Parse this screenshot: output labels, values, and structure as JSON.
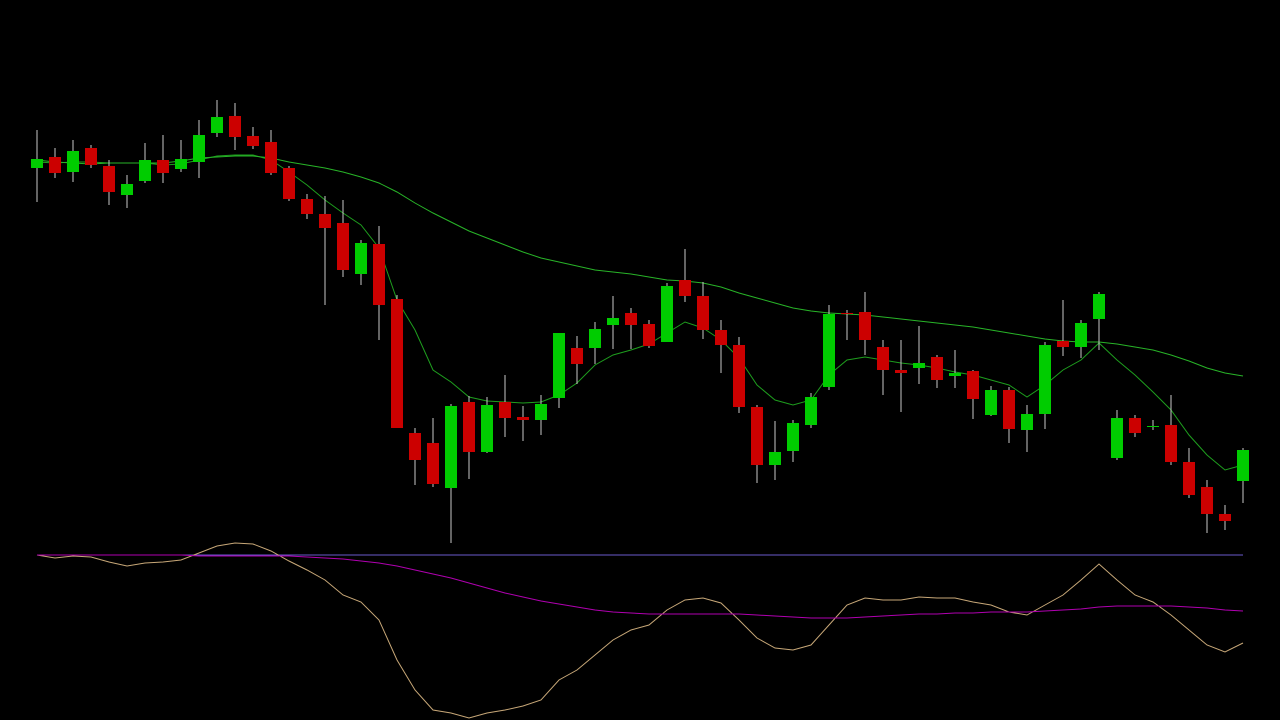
{
  "chart_data": [
    {
      "type": "candlestick",
      "up_color": "#00cc00",
      "down_color": "#cc0000",
      "wick_color": "#c8c8c8",
      "ylim": [
        55,
        520
      ],
      "open": [
        432,
        443,
        428,
        452,
        434,
        405,
        419,
        440,
        431,
        438,
        467,
        484,
        464,
        458,
        432,
        401,
        386,
        377,
        326,
        356,
        301,
        167,
        157,
        112,
        198,
        148,
        198,
        183,
        180,
        202,
        252,
        252,
        275,
        287,
        276,
        258,
        320,
        304,
        270,
        255,
        193,
        135,
        149,
        175,
        213,
        287,
        288,
        253,
        230,
        232,
        243,
        224,
        229,
        185,
        210,
        170,
        186,
        259,
        253,
        281,
        142,
        182,
        173,
        175,
        138,
        113,
        86,
        119
      ],
      "high": [
        470,
        452,
        460,
        455,
        440,
        425,
        457,
        465,
        460,
        480,
        500,
        497,
        473,
        470,
        434,
        406,
        404,
        400,
        360,
        374,
        305,
        172,
        182,
        196,
        204,
        203,
        225,
        194,
        205,
        267,
        264,
        278,
        304,
        292,
        280,
        317,
        351,
        318,
        280,
        263,
        195,
        179,
        180,
        207,
        295,
        290,
        308,
        260,
        260,
        274,
        245,
        250,
        230,
        214,
        213,
        195,
        258,
        300,
        280,
        308,
        190,
        185,
        180,
        205,
        152,
        120,
        95,
        152
      ],
      "low": [
        398,
        422,
        418,
        432,
        395,
        392,
        417,
        417,
        428,
        422,
        463,
        450,
        451,
        425,
        399,
        381,
        295,
        323,
        315,
        260,
        172,
        115,
        113,
        57,
        121,
        147,
        163,
        159,
        165,
        192,
        216,
        236,
        251,
        251,
        252,
        258,
        298,
        261,
        227,
        187,
        117,
        120,
        138,
        172,
        210,
        260,
        245,
        205,
        188,
        216,
        212,
        212,
        181,
        184,
        157,
        148,
        171,
        244,
        242,
        250,
        140,
        163,
        170,
        135,
        102,
        67,
        70,
        97
      ],
      "close": [
        441,
        427,
        449,
        435,
        408,
        416,
        440,
        427,
        441,
        465,
        483,
        463,
        454,
        427,
        401,
        386,
        372,
        330,
        357,
        295,
        172,
        140,
        116,
        194,
        148,
        195,
        182,
        180,
        196,
        267,
        236,
        271,
        282,
        275,
        254,
        314,
        304,
        270,
        255,
        193,
        135,
        148,
        177,
        203,
        286,
        286,
        260,
        230,
        227,
        237,
        220,
        227,
        201,
        210,
        171,
        186,
        255,
        253,
        277,
        306,
        182,
        167,
        174,
        138,
        105,
        86,
        79,
        150
      ],
      "ma": [
        {
          "color": "#1e9e1e",
          "values": [
            438,
            437,
            438,
            438,
            437,
            437,
            437,
            435,
            436,
            440,
            444,
            445,
            445,
            440,
            428,
            415,
            400,
            387,
            375,
            352,
            300,
            270,
            230,
            218,
            203,
            199,
            198,
            197,
            198,
            205,
            217,
            235,
            245,
            250,
            256,
            267,
            278,
            272,
            260,
            242,
            215,
            200,
            195,
            200,
            225,
            240,
            243,
            240,
            237,
            235,
            232,
            228,
            225,
            220,
            215,
            203,
            215,
            230,
            240,
            257,
            240,
            225,
            208,
            190,
            165,
            145,
            130,
            135
          ]
        },
        {
          "color": "#28b428",
          "values": [
            440,
            438,
            437,
            436,
            437,
            437,
            437,
            437,
            439,
            442,
            443,
            444,
            444,
            442,
            438,
            435,
            432,
            428,
            423,
            417,
            408,
            397,
            387,
            378,
            369,
            362,
            355,
            348,
            342,
            338,
            334,
            330,
            328,
            326,
            323,
            320,
            319,
            317,
            313,
            307,
            302,
            297,
            292,
            289,
            287,
            286,
            285,
            283,
            281,
            279,
            277,
            275,
            273,
            270,
            267,
            264,
            261,
            259,
            258,
            258,
            256,
            253,
            250,
            245,
            239,
            232,
            227,
            224
          ]
        }
      ]
    },
    {
      "type": "line",
      "ylim": [
        -165,
        15
      ],
      "reference_line": {
        "value": 0,
        "color": "#6a5acd"
      },
      "series": [
        {
          "color": "#c8a878",
          "values": [
            0,
            -3,
            -1,
            -2,
            -7,
            -11,
            -8,
            -7,
            -5,
            2,
            9,
            12,
            11,
            4,
            -6,
            -15,
            -25,
            -40,
            -47,
            -65,
            -105,
            -135,
            -155,
            -158,
            -163,
            -158,
            -155,
            -151,
            -145,
            -125,
            -115,
            -100,
            -85,
            -75,
            -70,
            -55,
            -45,
            -43,
            -48,
            -65,
            -83,
            -93,
            -95,
            -90,
            -70,
            -50,
            -43,
            -45,
            -45,
            -42,
            -43,
            -43,
            -47,
            -50,
            -57,
            -60,
            -50,
            -40,
            -25,
            -9,
            -25,
            -40,
            -47,
            -60,
            -75,
            -90,
            -97,
            -88
          ]
        },
        {
          "color": "#b000b0",
          "values": [
            0,
            0,
            0,
            0,
            0,
            0,
            0,
            0,
            0,
            -1,
            -1,
            -1,
            -1,
            -1,
            -1,
            -2,
            -3,
            -4,
            -6,
            -8,
            -11,
            -15,
            -19,
            -23,
            -28,
            -33,
            -38,
            -42,
            -46,
            -49,
            -52,
            -55,
            -57,
            -58,
            -59,
            -59,
            -59,
            -59,
            -59,
            -59,
            -60,
            -61,
            -62,
            -63,
            -63,
            -63,
            -62,
            -61,
            -60,
            -59,
            -59,
            -58,
            -58,
            -57,
            -57,
            -57,
            -56,
            -55,
            -54,
            -52,
            -51,
            -51,
            -51,
            -51,
            -52,
            -53,
            -55,
            -56
          ]
        }
      ]
    }
  ]
}
